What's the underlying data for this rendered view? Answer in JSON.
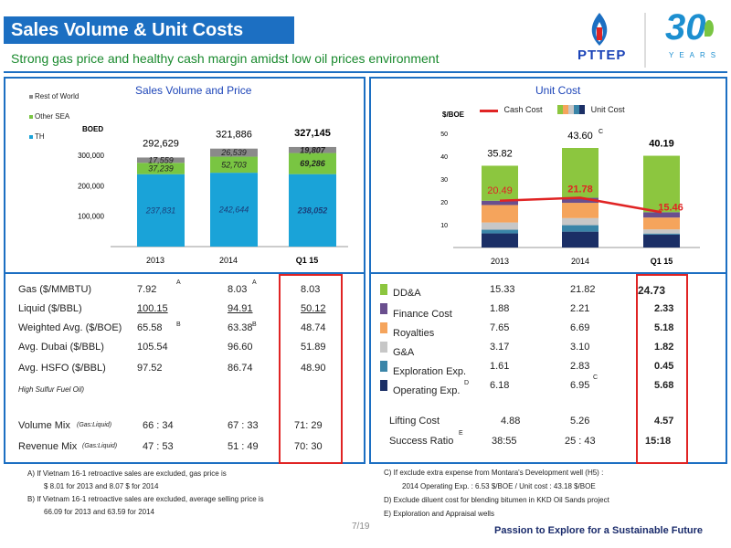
{
  "header": {
    "title": "Sales Volume & Unit Costs",
    "subtitle": "Strong gas price and healthy cash margin amidst low oil prices environment",
    "brand": "PTTEP",
    "anniversary_number": "30",
    "anniversary_word": "YEARS"
  },
  "chart_data": [
    {
      "type": "bar",
      "title": "Sales Volume and Price",
      "ylabel": "BOED",
      "categories": [
        "2013",
        "2014",
        "Q1 15"
      ],
      "series": [
        {
          "name": "TH",
          "values": [
            237831,
            242644,
            238052
          ],
          "labels": [
            "237,831",
            "242,644",
            "238,052"
          ],
          "color": "#1aa3d8"
        },
        {
          "name": "Other SEA",
          "values": [
            37239,
            52703,
            69286
          ],
          "labels": [
            "37,239",
            "52,703",
            "69,286"
          ],
          "color": "#79c542"
        },
        {
          "name": "Rest of World",
          "values": [
            17559,
            26539,
            19807
          ],
          "labels": [
            "17,559",
            "26,539",
            "19,807"
          ],
          "color": "#8a8a8a"
        }
      ],
      "totals": [
        "292,629",
        "321,886",
        "327,145"
      ],
      "yticks": [
        "100,000",
        "200,000",
        "300,000"
      ],
      "ylim": [
        0,
        350000
      ],
      "legend": "top-left"
    },
    {
      "type": "bar",
      "title": "Unit Cost",
      "ylabel": "$/BOE",
      "categories": [
        "2013",
        "2014",
        "Q1 15"
      ],
      "series": [
        {
          "name": "Operating Exp.",
          "values": [
            6.18,
            6.95,
            5.68
          ],
          "color": "#1b2f66"
        },
        {
          "name": "Exploration Exp.",
          "values": [
            1.61,
            2.83,
            0.45
          ],
          "color": "#3a85a8"
        },
        {
          "name": "G&A",
          "values": [
            3.17,
            3.1,
            1.82
          ],
          "color": "#c7c7c7"
        },
        {
          "name": "Royalties",
          "values": [
            7.65,
            6.69,
            5.18
          ],
          "color": "#f5a45c"
        },
        {
          "name": "Finance Cost",
          "values": [
            1.88,
            2.21,
            2.33
          ],
          "color": "#6a4f8e"
        },
        {
          "name": "DD&A",
          "values": [
            15.33,
            21.82,
            24.73
          ],
          "color": "#8cc63f"
        }
      ],
      "cash_cost": {
        "name": "Cash Cost",
        "values": [
          20.49,
          21.78,
          15.46
        ],
        "labels": [
          "20.49",
          "21.78",
          "15.46"
        ],
        "color": "#e02424"
      },
      "totals": [
        "35.82",
        "43.60",
        "40.19"
      ],
      "total_markers": [
        "",
        "C",
        ""
      ],
      "yticks": [
        "10",
        "20",
        "30",
        "40",
        "50"
      ],
      "ylim": [
        0,
        50
      ],
      "legend": "top",
      "legend_unit": "Unit Cost"
    }
  ],
  "left_table": {
    "rows": [
      {
        "label": "Gas ($/MMBTU)",
        "v2013": "7.92",
        "m2013": "A",
        "v2014": "8.03",
        "m2014": "A",
        "vq1": "8.03"
      },
      {
        "label": "Liquid ($/BBL)",
        "v2013": "100.15",
        "m2013": "",
        "v2014": "94.91",
        "m2014": "",
        "vq1": "50.12"
      },
      {
        "label": "Weighted Avg. ($/BOE)",
        "v2013": "65.58",
        "m2013": "B",
        "v2014": "63.38",
        "m2014": "B",
        "vq1": "48.74"
      },
      {
        "label": "Avg. Dubai ($/BBL)",
        "v2013": "105.54",
        "m2013": "",
        "v2014": "96.60",
        "m2014": "",
        "vq1": "51.89"
      },
      {
        "label": "Avg. HSFO ($/BBL)",
        "v2013": "97.52",
        "m2013": "",
        "v2014": "86.74",
        "m2014": "",
        "vq1": "48.90"
      }
    ],
    "hsfo_note": "High Sulfur Fuel Oil)",
    "mix": [
      {
        "label": "Volume Mix",
        "sub": "(Gas:Liquid)",
        "v2013": "66 : 34",
        "v2014": "67 : 33",
        "vq1": "71: 29"
      },
      {
        "label": "Revenue Mix",
        "sub": "(Gas:Liquid)",
        "v2013": "47 : 53",
        "v2014": "51 : 49",
        "vq1": "70: 30"
      }
    ]
  },
  "right_table": {
    "rows": [
      {
        "label": "DD&A",
        "v2013": "15.33",
        "v2014": "21.82",
        "vq1": "24.73",
        "mark": ""
      },
      {
        "label": "Finance Cost",
        "v2013": "1.88",
        "v2014": "2.21",
        "vq1": "2.33",
        "mark": ""
      },
      {
        "label": "Royalties",
        "v2013": "7.65",
        "v2014": "6.69",
        "vq1": "5.18",
        "mark": ""
      },
      {
        "label": "G&A",
        "v2013": "3.17",
        "v2014": "3.10",
        "vq1": "1.82",
        "mark": ""
      },
      {
        "label": "Exploration Exp.",
        "v2013": "1.61",
        "v2014": "2.83",
        "vq1": "0.45",
        "mark": ""
      },
      {
        "label": "Operating Exp.",
        "v2013": "6.18",
        "v2014": "6.95",
        "vq1": "5.68",
        "mark": "D",
        "mark2014": "C"
      }
    ],
    "lifting": {
      "label": "Lifting Cost",
      "v2013": "4.88",
      "v2014": "5.26",
      "vq1": "4.57"
    },
    "success": {
      "label": "Success Ratio",
      "mark": "E",
      "v2013": "38:55",
      "v2014": "25 : 43",
      "vq1": "15:18"
    }
  },
  "notes_left": [
    "A)  If Vietnam 16-1 retroactive sales are excluded, gas price is",
    "$ 8.01 for 2013  and  8.07  $ for  2014",
    "B)  If Vietnam 16-1 retroactive sales are excluded, average selling price is",
    "66.09 for 2013 and  63.59 for 2014"
  ],
  "notes_right": [
    "C)    If exclude extra expense from Montara's Development well (H5) :",
    "2014  Operating  Exp. : 6.53  $/BOE  /  Unit cost : 43.18 $/BOE",
    "D)     Exclude diluent cost for blending bitumen in KKD Oil Sands  project",
    "E)     Exploration and Appraisal wells"
  ],
  "footer": {
    "page": "7/19",
    "tagline": "Passion to Explore for a Sustainable Future"
  }
}
